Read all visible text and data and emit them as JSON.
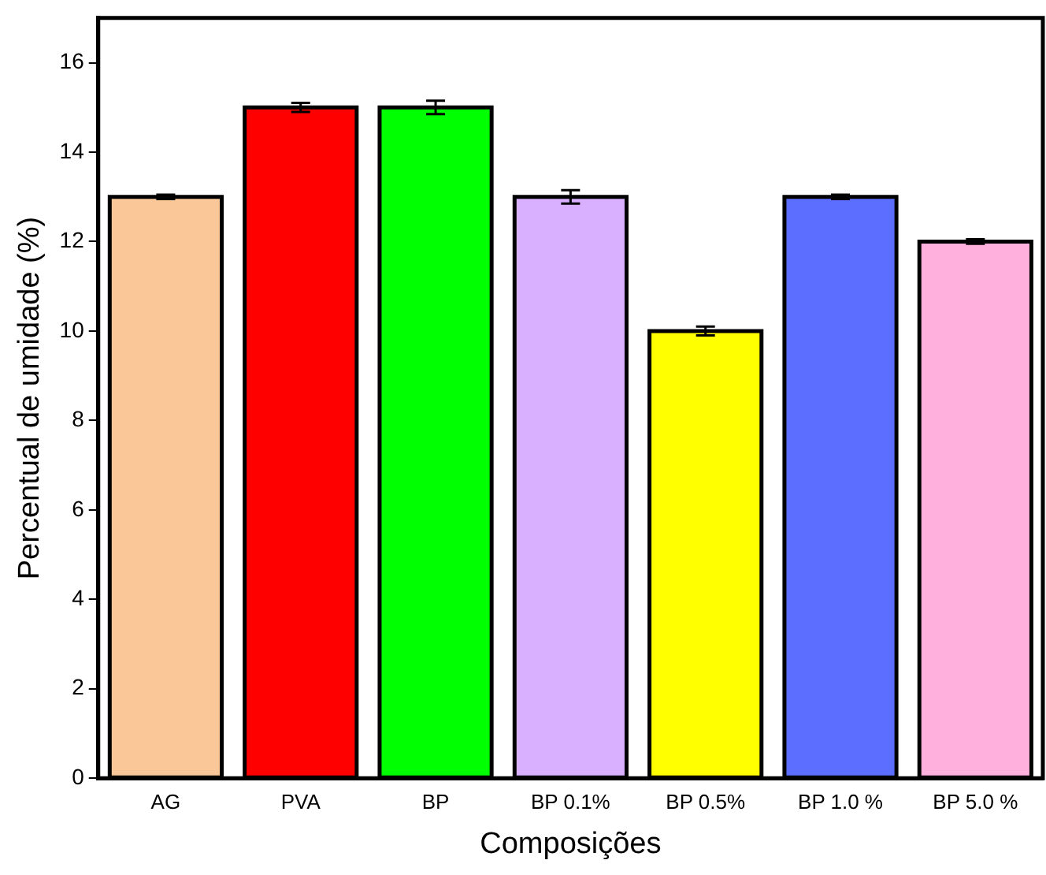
{
  "chart_data": {
    "type": "bar",
    "xlabel": "Composições",
    "ylabel": "Percentual de umidade (%)",
    "categories": [
      "AG",
      "PVA",
      "BP",
      "BP 0.1%",
      "BP 0.5%",
      "BP 1.0 %",
      "BP 5.0 %"
    ],
    "values": [
      13,
      15,
      15,
      13,
      10,
      13,
      12
    ],
    "errors": [
      0.05,
      0.1,
      0.15,
      0.15,
      0.1,
      0.05,
      0.05
    ],
    "colors": [
      "#fac898",
      "#ff0000",
      "#00ff00",
      "#d8b0ff",
      "#ffff00",
      "#5b6eff",
      "#ffb0dc"
    ],
    "ylim": [
      0,
      17
    ],
    "yticks": [
      0,
      2,
      4,
      6,
      8,
      10,
      12,
      14,
      16
    ],
    "grid": false,
    "legend": false
  }
}
